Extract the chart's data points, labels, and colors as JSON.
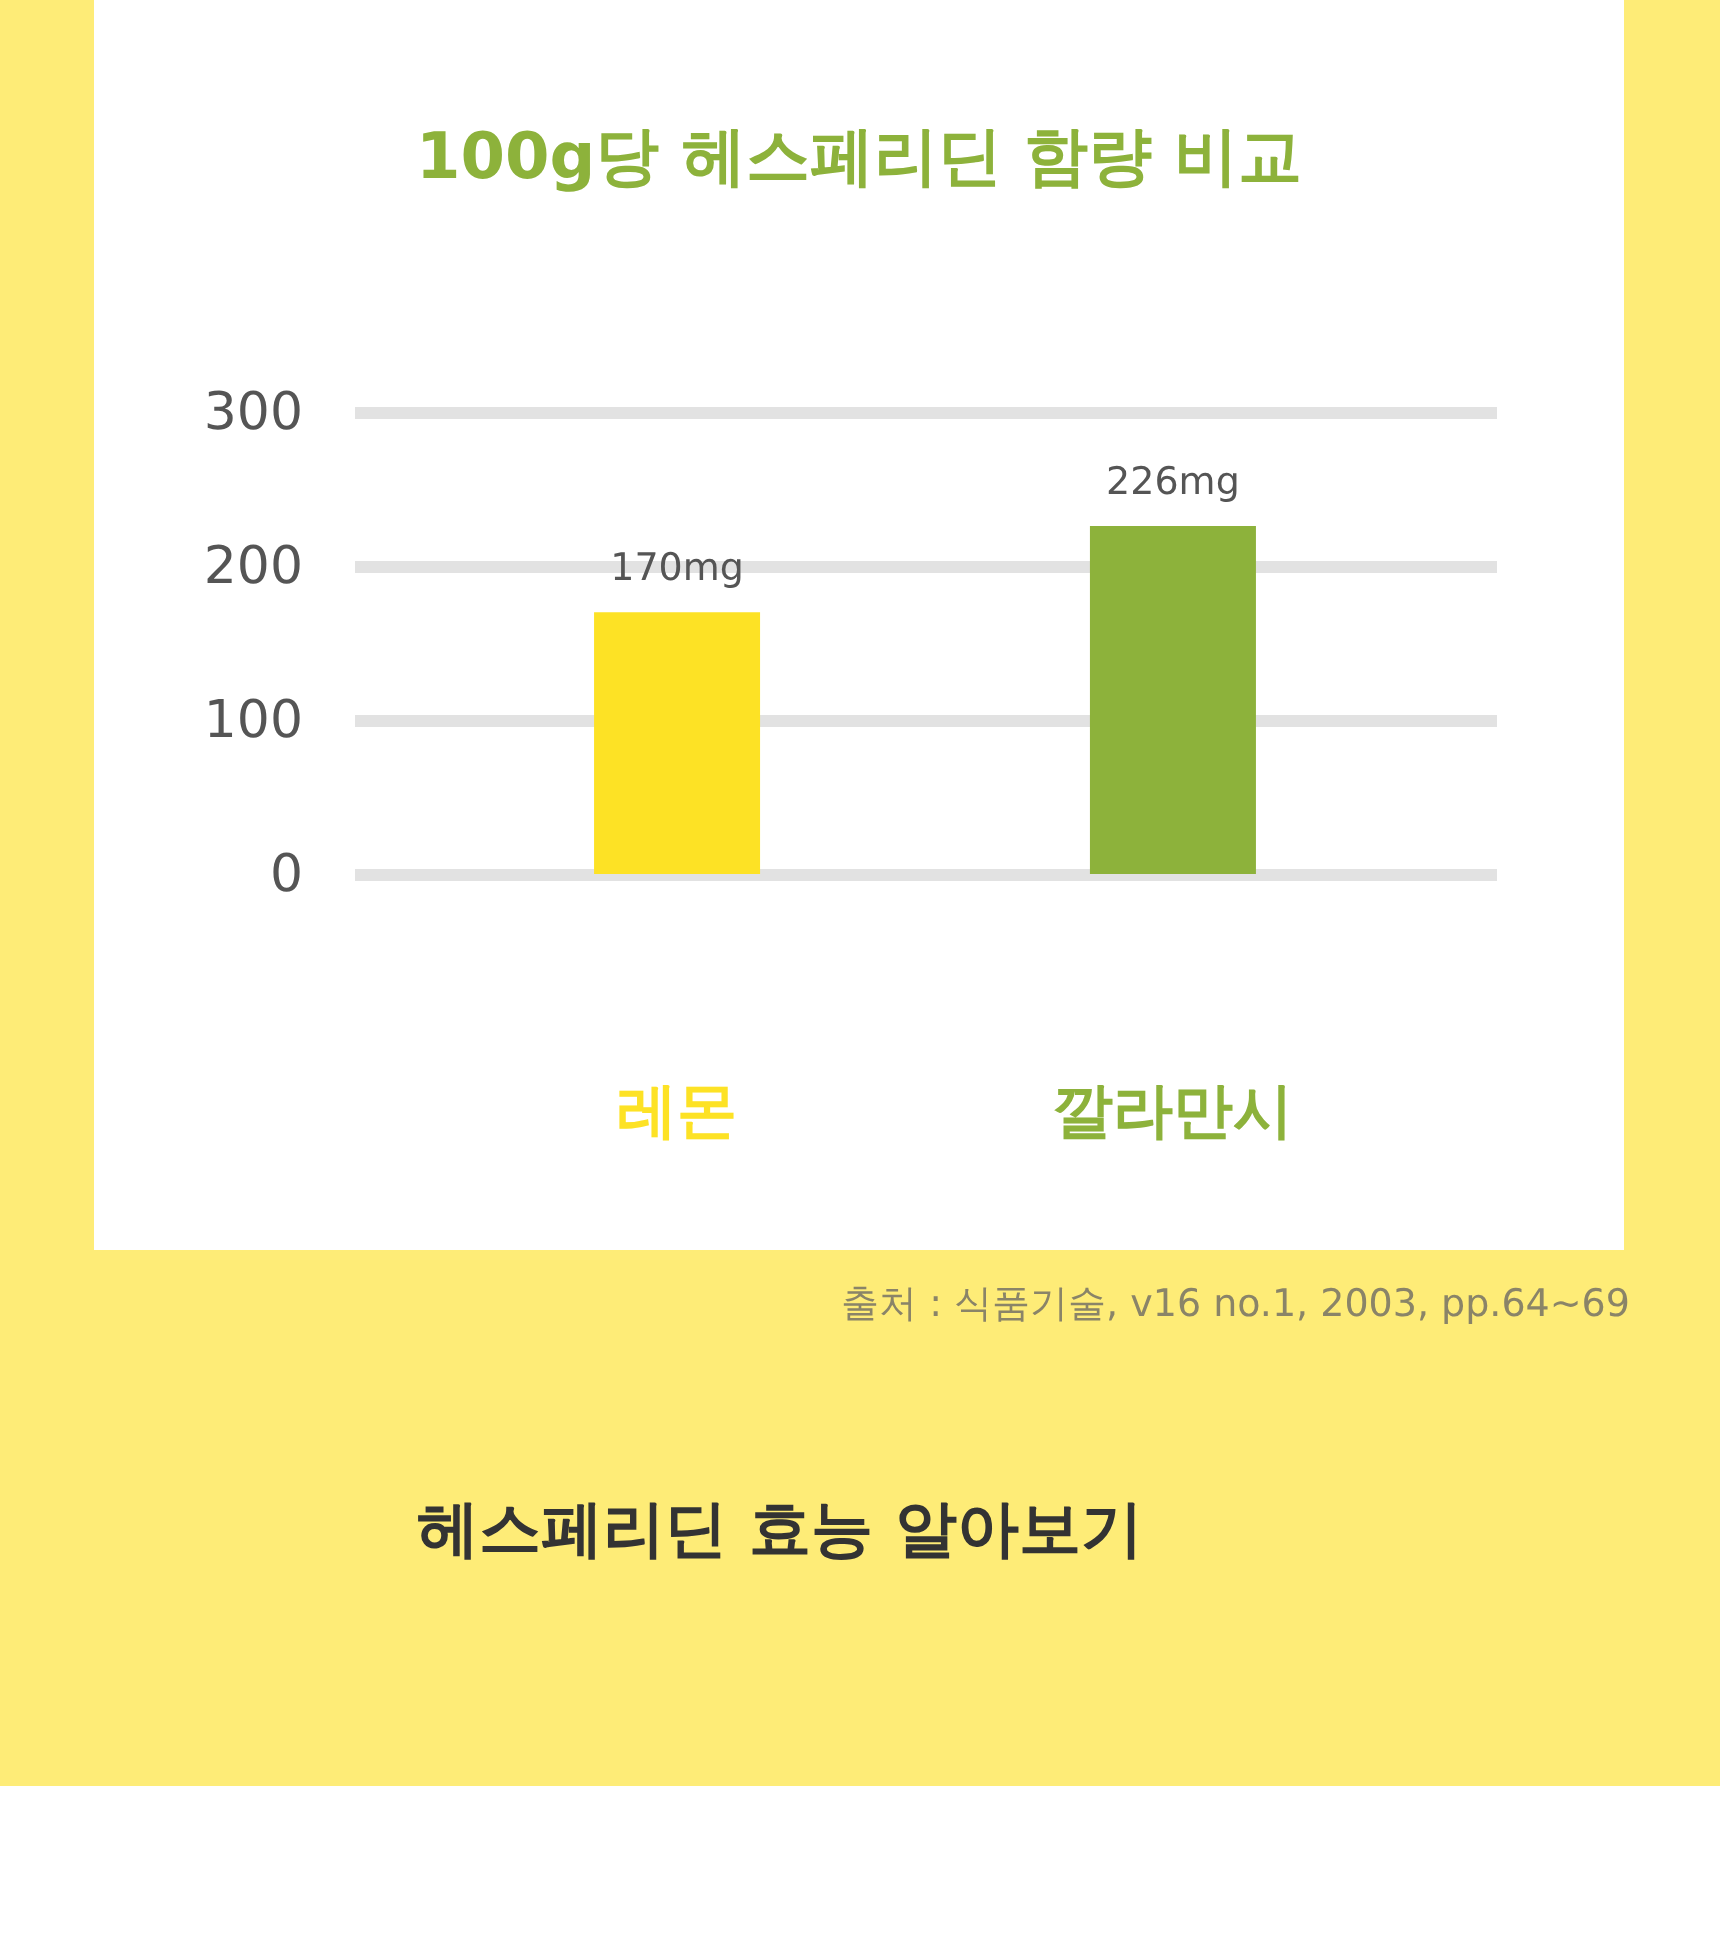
{
  "chart_data": {
    "type": "bar",
    "title": "100g당 헤스페리딘 함량 비교",
    "categories": [
      "레몬",
      "깔라만시"
    ],
    "values": [
      170,
      226
    ],
    "colors": [
      "#fde225",
      "#8db23b"
    ],
    "value_labels": [
      "170mg",
      "226mg"
    ],
    "ylim": [
      0,
      300
    ],
    "yticks": [
      0,
      100,
      200,
      300
    ],
    "grid": "y",
    "annotations": [
      "출처 : 식품기술, v16 no.1, 2003, pp.64~69",
      "헤스페리딘 효능 알아보기"
    ]
  }
}
